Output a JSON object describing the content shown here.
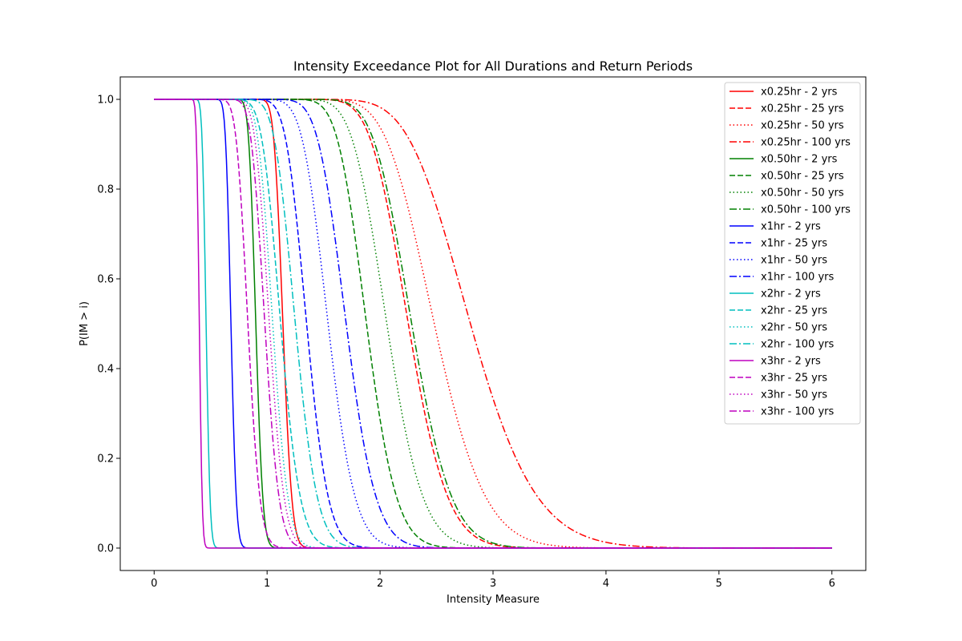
{
  "chart_data": {
    "type": "line",
    "title": "Intensity Exceedance Plot for All Durations and Return Periods",
    "xlabel": "Intensity Measure",
    "ylabel": "P(IM > i)",
    "xlim": [
      -0.3,
      6.3
    ],
    "ylim": [
      -0.05,
      1.05
    ],
    "xticks": [
      0,
      1,
      2,
      3,
      4,
      5,
      6
    ],
    "yticks": [
      0.0,
      0.2,
      0.4,
      0.6,
      0.8,
      1.0
    ],
    "x_range": [
      0,
      6
    ],
    "grid": false,
    "legend_position": "upper right",
    "colors": {
      "x0.25hr": "#ff0000",
      "x0.50hr": "#008000",
      "x1hr": "#0000ff",
      "x2hr": "#00bfbf",
      "x3hr": "#bf00bf"
    },
    "series": [
      {
        "name": "x0.25hr - 2 yrs",
        "color": "#ff0000",
        "dash": "solid",
        "median": 1.14,
        "sigma": 0.055
      },
      {
        "name": "x0.25hr - 25 yrs",
        "color": "#ff0000",
        "dash": "dashed",
        "median": 2.25,
        "sigma": 0.12
      },
      {
        "name": "x0.25hr - 50 yrs",
        "color": "#ff0000",
        "dash": "dotted",
        "median": 2.48,
        "sigma": 0.14
      },
      {
        "name": "x0.25hr - 100 yrs",
        "color": "#ff0000",
        "dash": "dashdot",
        "median": 2.8,
        "sigma": 0.16
      },
      {
        "name": "x0.50hr - 2 yrs",
        "color": "#008000",
        "dash": "solid",
        "median": 0.9,
        "sigma": 0.055
      },
      {
        "name": "x0.50hr - 25 yrs",
        "color": "#008000",
        "dash": "dashed",
        "median": 1.88,
        "sigma": 0.11
      },
      {
        "name": "x0.50hr - 50 yrs",
        "color": "#008000",
        "dash": "dotted",
        "median": 2.06,
        "sigma": 0.12
      },
      {
        "name": "x0.50hr - 100 yrs",
        "color": "#008000",
        "dash": "dashdot",
        "median": 2.28,
        "sigma": 0.12
      },
      {
        "name": "x1hr - 2 yrs",
        "color": "#0000ff",
        "dash": "solid",
        "median": 0.68,
        "sigma": 0.055
      },
      {
        "name": "x1hr - 25 yrs",
        "color": "#0000ff",
        "dash": "dashed",
        "median": 1.35,
        "sigma": 0.11
      },
      {
        "name": "x1hr - 50 yrs",
        "color": "#0000ff",
        "dash": "dotted",
        "median": 1.54,
        "sigma": 0.12
      },
      {
        "name": "x1hr - 100 yrs",
        "color": "#0000ff",
        "dash": "dashdot",
        "median": 1.7,
        "sigma": 0.12
      },
      {
        "name": "x2hr - 2 yrs",
        "color": "#00bfbf",
        "dash": "solid",
        "median": 0.46,
        "sigma": 0.06
      },
      {
        "name": "x2hr - 25 yrs",
        "color": "#00bfbf",
        "dash": "dashed",
        "median": 1.12,
        "sigma": 0.12
      },
      {
        "name": "x2hr - 50 yrs",
        "color": "#00bfbf",
        "dash": "dotted",
        "median": 1.05,
        "sigma": 0.1
      },
      {
        "name": "x2hr - 100 yrs",
        "color": "#00bfbf",
        "dash": "dashdot",
        "median": 1.25,
        "sigma": 0.12
      },
      {
        "name": "x3hr - 2 yrs",
        "color": "#bf00bf",
        "dash": "solid",
        "median": 0.4,
        "sigma": 0.05
      },
      {
        "name": "x3hr - 25 yrs",
        "color": "#bf00bf",
        "dash": "dashed",
        "median": 0.83,
        "sigma": 0.1
      },
      {
        "name": "x3hr - 50 yrs",
        "color": "#bf00bf",
        "dash": "dotted",
        "median": 1.02,
        "sigma": 0.1
      },
      {
        "name": "x3hr - 100 yrs",
        "color": "#bf00bf",
        "dash": "dashdot",
        "median": 0.98,
        "sigma": 0.1
      }
    ]
  }
}
